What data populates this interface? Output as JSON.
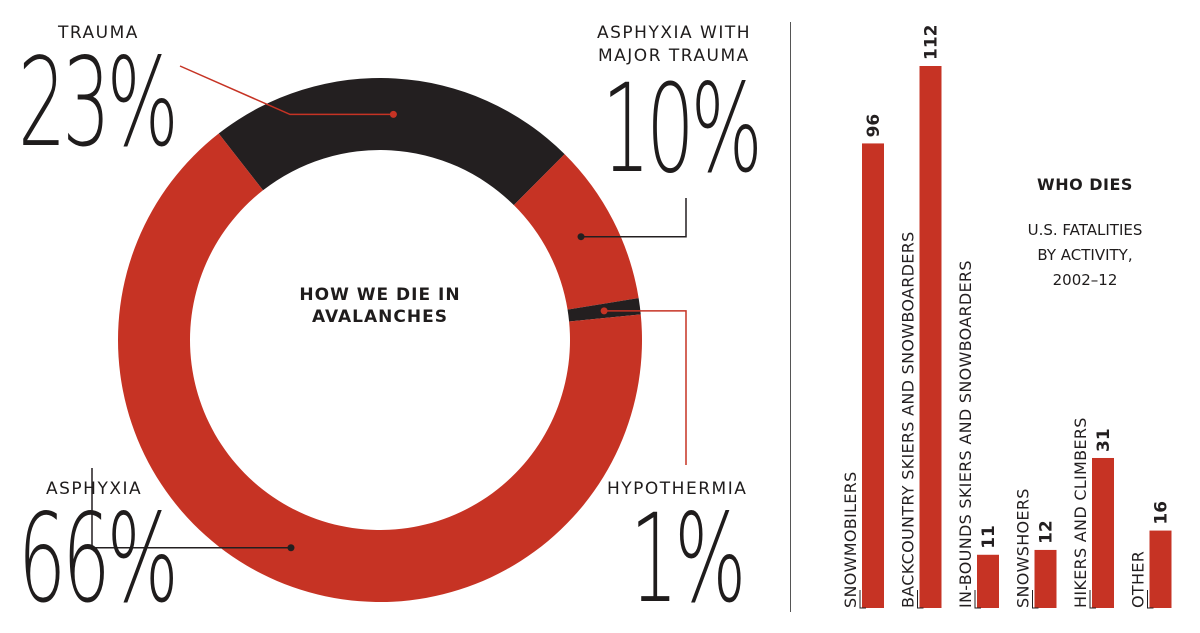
{
  "colors": {
    "red": "#c63324",
    "dark": "#231f20",
    "text": "#1f1c1c"
  },
  "donut": {
    "center_title_line1": "HOW WE DIE IN",
    "center_title_line2": "AVALANCHES",
    "segments": [
      {
        "label": "TRAUMA",
        "percent": 23,
        "display": "23%",
        "color": "#231f20"
      },
      {
        "label": "ASPHYXIA WITH MAJOR TRAUMA",
        "label_line1": "ASPHYXIA WITH",
        "label_line2": "MAJOR TRAUMA",
        "percent": 10,
        "display": "10%",
        "color": "#c63324"
      },
      {
        "label": "HYPOTHERMIA",
        "percent": 1,
        "display": "1%",
        "color": "#231f20"
      },
      {
        "label": "ASPHYXIA",
        "percent": 66,
        "display": "66%",
        "color": "#c63324"
      }
    ]
  },
  "bars": {
    "title": "WHO DIES",
    "subtitle": "U.S. FATALITIES\nBY ACTIVITY,\n2002–12",
    "items": [
      {
        "label": "SNOWMOBILERS",
        "value": 96
      },
      {
        "label": "BACKCOUNTRY SKIERS AND SNOWBOARDERS",
        "value": 112
      },
      {
        "label": "IN-BOUNDS SKIERS AND SNOWBOARDERS",
        "value": 11
      },
      {
        "label": "SNOWSHOERS",
        "value": 12
      },
      {
        "label": "HIKERS AND CLIMBERS",
        "value": 31
      },
      {
        "label": "OTHER",
        "value": 16
      }
    ]
  },
  "chart_data": [
    {
      "type": "pie",
      "title": "HOW WE DIE IN AVALANCHES",
      "categories": [
        "TRAUMA",
        "ASPHYXIA WITH MAJOR TRAUMA",
        "HYPOTHERMIA",
        "ASPHYXIA"
      ],
      "values": [
        23,
        10,
        1,
        66
      ]
    },
    {
      "type": "bar",
      "title": "WHO DIES",
      "subtitle": "U.S. FATALITIES BY ACTIVITY, 2002–12",
      "categories": [
        "SNOWMOBILERS",
        "BACKCOUNTRY SKIERS AND SNOWBOARDERS",
        "IN-BOUNDS SKIERS AND SNOWBOARDERS",
        "SNOWSHOERS",
        "HIKERS AND CLIMBERS",
        "OTHER"
      ],
      "values": [
        96,
        112,
        11,
        12,
        31,
        16
      ],
      "ylim": [
        0,
        112
      ]
    }
  ]
}
